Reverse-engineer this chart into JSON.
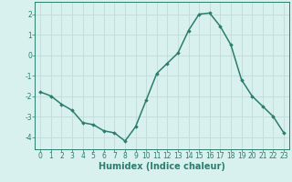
{
  "x": [
    0,
    1,
    2,
    3,
    4,
    5,
    6,
    7,
    8,
    9,
    10,
    11,
    12,
    13,
    14,
    15,
    16,
    17,
    18,
    19,
    20,
    21,
    22,
    23
  ],
  "y": [
    -1.8,
    -2.0,
    -2.4,
    -2.7,
    -3.3,
    -3.4,
    -3.7,
    -3.8,
    -4.2,
    -3.5,
    -2.2,
    -0.9,
    -0.4,
    0.1,
    1.2,
    2.0,
    2.05,
    1.4,
    0.5,
    -1.2,
    -2.0,
    -2.5,
    -3.0,
    -3.8
  ],
  "line_color": "#2d7d6e",
  "marker": "D",
  "marker_size": 1.8,
  "bg_color": "#d8f0ee",
  "grid_color": "#c0dbd8",
  "xlabel": "Humidex (Indice chaleur)",
  "xlim": [
    -0.5,
    23.5
  ],
  "ylim": [
    -4.6,
    2.6
  ],
  "yticks": [
    -4,
    -3,
    -2,
    -1,
    0,
    1,
    2
  ],
  "xticks": [
    0,
    1,
    2,
    3,
    4,
    5,
    6,
    7,
    8,
    9,
    10,
    11,
    12,
    13,
    14,
    15,
    16,
    17,
    18,
    19,
    20,
    21,
    22,
    23
  ],
  "tick_color": "#2d7d6e",
  "label_fontsize": 5.5,
  "xlabel_fontsize": 7.0,
  "linewidth": 1.1
}
